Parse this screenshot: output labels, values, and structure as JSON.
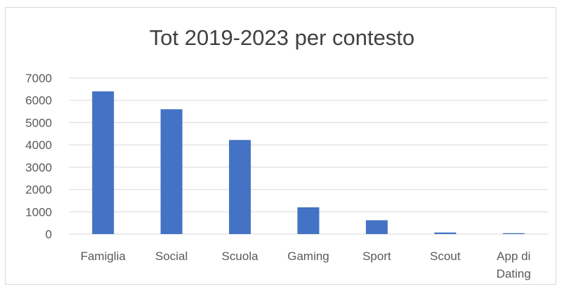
{
  "chart_data": {
    "type": "bar",
    "title": "Tot 2019-2023 per contesto",
    "xlabel": "",
    "ylabel": "",
    "categories": [
      "Famiglia",
      "Social",
      "Scuola",
      "Gaming",
      "Sport",
      "Scout",
      "App di Dating"
    ],
    "category_lines": [
      [
        "Famiglia"
      ],
      [
        "Social"
      ],
      [
        "Scuola"
      ],
      [
        "Gaming"
      ],
      [
        "Sport"
      ],
      [
        "Scout"
      ],
      [
        "App di",
        "Dating"
      ]
    ],
    "values": [
      6400,
      5600,
      4220,
      1200,
      620,
      70,
      40
    ],
    "ylim": [
      0,
      7000
    ],
    "yticks": [
      0,
      1000,
      2000,
      3000,
      4000,
      5000,
      6000,
      7000
    ],
    "grid": true,
    "legend": "none",
    "bar_color": "#4472c4",
    "grid_color": "#d9d9d9"
  }
}
